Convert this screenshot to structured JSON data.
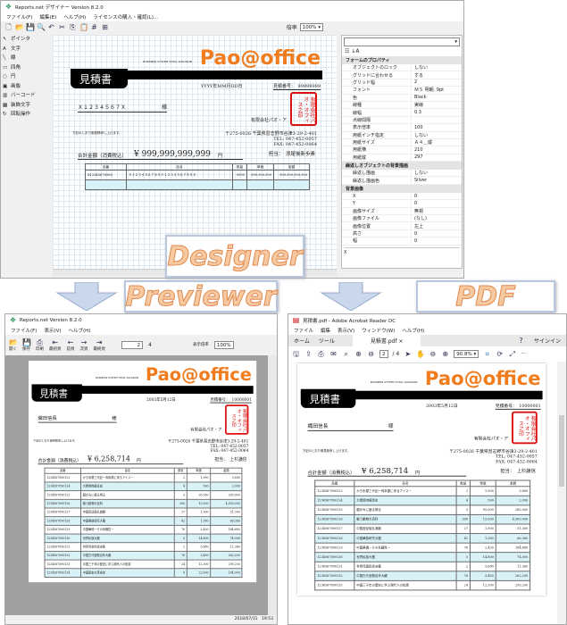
{
  "designer": {
    "title": "Reports.net デザイナー Version 8.2.0",
    "menu": [
      "ファイル(F)",
      "編集(E)",
      "ヘルプ(H)",
      "ライセンスの購入・確認(L)..."
    ],
    "zoom_label": "倍率",
    "zoom_value": "100%",
    "tools": [
      "ポインタ",
      "文字",
      "線",
      "四角",
      "円",
      "画像",
      "バーコード",
      "装飾文字",
      "回転操作"
    ],
    "properties": [
      {
        "category": "フォームのプロパティ",
        "rows": [
          [
            "オブジェクトのロック",
            "しない"
          ],
          [
            "グリッドに合わせる",
            "する"
          ],
          [
            "グリッド幅",
            "2"
          ],
          [
            "フォント",
            "ＭＳ 明朝, 9pt"
          ],
          [
            "色",
            "Black"
          ],
          [
            "線種",
            "実線"
          ],
          [
            "線幅",
            "0.3"
          ],
          [
            "点線間隔",
            ""
          ],
          [
            "表示倍率",
            "100"
          ],
          [
            "用紙インチ指定",
            "しない"
          ],
          [
            "用紙サイズ",
            "Ａ４＿縦"
          ],
          [
            "用紙横",
            "210"
          ],
          [
            "用紙縦",
            "297"
          ]
        ]
      },
      {
        "category": "繰返しオブジェクトの背景描画",
        "rows": [
          [
            "繰返し描画",
            "しない"
          ],
          [
            "繰返し描画色",
            "Silver"
          ]
        ]
      },
      {
        "category": "背景画像",
        "rows": [
          [
            "X",
            "0"
          ],
          [
            "Y",
            "0"
          ],
          [
            "画像サイズ",
            "無視"
          ],
          [
            "画像ファイル",
            "(なし)"
          ],
          [
            "画像位置",
            "左上"
          ],
          [
            "高さ",
            "0"
          ],
          [
            "幅",
            "0"
          ]
        ]
      }
    ],
    "prop_footer": "X",
    "doc": {
      "date": "YYYY年MM月DD日",
      "estno": "見積番号：　99999999",
      "customer": "Ｘ１２３４５６７Ｘ",
      "total": "¥ 999,999,999,999",
      "tanto": "担当：　添尾後新歩素",
      "rows": [
        [
          "X1234567890X",
          "Ｘ１２３４５６７８９０１２３４５６７８９Ｘ",
          "9999",
          "999,999,999",
          "999,999,999,999"
        ],
        [
          "",
          "",
          "",
          "",
          ""
        ]
      ]
    }
  },
  "labels": {
    "designer": "Designer",
    "previewer": "Previewer",
    "pdf": "PDF"
  },
  "previewer": {
    "title": "Reports.net Version 8.2.0",
    "menu": [
      "ファイル(F)",
      "表示(V)",
      "ヘルプ(H)"
    ],
    "buttons": [
      "開く",
      "保存",
      "印刷",
      "最初頁",
      "前頁",
      "次頁",
      "最終頁"
    ],
    "page": "2",
    "page_total": "4",
    "zoom_label": "表示倍率",
    "zoom_value": "100%",
    "status": "2018/07/31　19:53"
  },
  "pdf": {
    "title": "見積書.pdf - Adobe Acrobat Reader DC",
    "menu": [
      "ファイル",
      "編集",
      "表示(V)",
      "ウィンドウ(W)",
      "ヘルプ(H)"
    ],
    "tabs": [
      "ホーム",
      "ツール",
      "見積書.pdf"
    ],
    "signin": "サインイン",
    "page": "2",
    "page_total": "/ 4",
    "zoom_value": "90.8%"
  },
  "document": {
    "logo_small": "BUSINESS SYSTEM TOTAL SOLUSION",
    "logo": "Pao@office",
    "title": "見積書",
    "date": "2003年5月12日",
    "estno": "見積番号：　10000001",
    "customer": "織田信長",
    "honorific": "様",
    "company": "有限会社パオ・ア",
    "stamp": "有限会社パオ・オフィス之印",
    "note": "下記のとおり御見積申し上げます。",
    "address": [
      "〒275-0026 千葉県習志野市谷津3-29-2-401",
      "TEL: 047-452-0057",
      "FAX: 047-452-0064"
    ],
    "total_label": "合計金額（消費税込）",
    "total": "¥ 6,258,714",
    "yen": "円",
    "tanto": "担当：　上杉謙信",
    "headers": [
      "品番",
      "品名",
      "数量",
      "単価",
      "金額"
    ],
    "rows": [
      [
        "1234567890123",
        "かき氷屋三代記一商氷屋に来るアイスー",
        "2",
        "1,900",
        "3,800"
      ],
      [
        "1234567890124",
        "大衆焼肉極意史",
        "4",
        "500",
        "2,000"
      ],
      [
        "1234567890125",
        "願がみに疲る噂る",
        "3",
        "95,000",
        "285,000"
      ],
      [
        "1234567890126",
        "戦う動物大百科",
        "300",
        "15,000",
        "4,500,000"
      ],
      [
        "1234567890127",
        "中国宮廷儀礼典範",
        "27",
        "1,900",
        "51,300"
      ],
      [
        "1234567890128",
        "中国華族研究大鑑",
        "42",
        "1,580",
        "66,360"
      ],
      [
        "1234567890129",
        "中国華僑ーその系譜性ー",
        "76",
        "2,430",
        "184,680"
      ],
      [
        "1234567890130",
        "世界民族大鑑",
        "5",
        "14,800",
        "74,000"
      ],
      [
        "1234567890131",
        "世界児童民話全集",
        "2",
        "5,680",
        "11,360"
      ],
      [
        "1234567890132",
        "中国古代宮殿百年大観",
        "76",
        "3,450",
        "262,200"
      ],
      [
        "1234567890133",
        "中国三千年の歴史に学ぶ現代人の知恵",
        "24",
        "12,300",
        "295,200"
      ],
      [
        "1234567890134",
        "中国歴史大革命史",
        "8",
        "23,000",
        "184,000"
      ]
    ]
  },
  "colors": {
    "brand": "#f07c1e",
    "stamp": "#dd1111",
    "row_alt": "#d9f2f8"
  }
}
